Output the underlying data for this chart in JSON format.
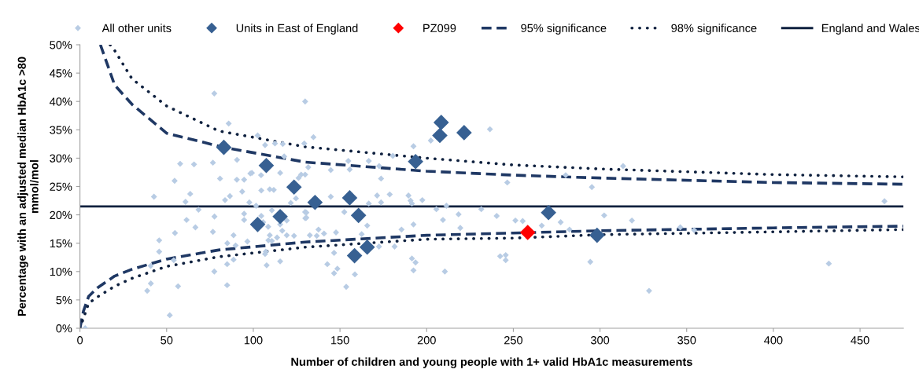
{
  "chart_data": {
    "type": "scatter",
    "xlabel": "Number of children and young people with 1+ valid HbA1c measurements",
    "ylabel": "Percentage with an adjusted median HbA1c >80\nmmol/mol",
    "xlim": [
      0,
      475
    ],
    "xticks": [
      0,
      50,
      100,
      150,
      200,
      250,
      300,
      350,
      400,
      450
    ],
    "ylim": [
      0,
      50
    ],
    "yticks": [
      {
        "value": 0,
        "label": "0%"
      },
      {
        "value": 5,
        "label": "5%"
      },
      {
        "value": 10,
        "label": "10%"
      },
      {
        "value": 15,
        "label": "15%"
      },
      {
        "value": 20,
        "label": "20%"
      },
      {
        "value": 25,
        "label": "25%"
      },
      {
        "value": 30,
        "label": "30%"
      },
      {
        "value": 35,
        "label": "35%"
      },
      {
        "value": 40,
        "label": "40%"
      },
      {
        "value": 45,
        "label": "45%"
      },
      {
        "value": 50,
        "label": "50%"
      }
    ],
    "grid": false,
    "legend": "top",
    "series": [
      {
        "name": "All other units",
        "color": "#b8cce4",
        "marker": "diamond",
        "x": [
          3.0,
          77.5,
          85.8,
          129.9,
          102.5,
          106.8,
          112.5,
          117.0,
          129.4,
          90.6,
          57.8,
          65.8,
          76.7,
          99.2,
          98.3,
          104.5,
          115.5,
          117.8,
          126.1,
          127.6,
          129.9,
          80.8,
          54.6,
          90.5,
          94.7,
          109.5,
          111.8,
          104.6,
          93.6,
          86.5,
          42.7,
          63.6,
          60.9,
          83.7,
          124.6,
          121.6,
          97.7,
          101.6,
          68.4,
          110.7,
          129.9,
          61.5,
          77.6,
          94.7,
          94.7,
          104.6,
          105.7,
          115.5,
          119.3,
          66.6,
          108.6,
          130.0,
          45.7,
          54.8,
          76.7,
          88.6,
          96.6,
          109.5,
          113.7,
          108.7,
          110.7,
          116.7,
          119.3,
          123.5,
          85.0,
          89.8,
          45.7,
          54.1,
          107.2,
          106.8,
          88.6,
          40.8,
          84.9,
          77.5,
          107.7,
          115.5,
          40.9,
          38.8,
          56.6,
          84.9,
          51.8,
          134.7,
          131.7,
          154.8,
          155.6,
          144.7,
          166.6,
          172.6,
          173.7,
          192.4,
          202.4,
          236.5,
          246.5,
          180.5,
          144.7,
          171.4,
          173.7,
          178.7,
          189.5,
          190.7,
          191.5,
          197.5,
          130.6,
          130.6,
          152.5,
          166.6,
          205.6,
          211.4,
          209.4,
          218.4,
          231.5,
          240.4,
          251.2,
          255.4,
          219.4,
          192.4,
          165.7,
          162.5,
          185.5,
          147.7,
          140.8,
          137.6,
          136.6,
          132.6,
          172.5,
          181.5,
          146.6,
          142.7,
          148.5,
          146.6,
          191.5,
          193.6,
          192.4,
          210.5,
          158.6,
          153.6,
          242.4,
          245.6,
          245.6,
          280.2,
          295.3,
          313.3,
          302.4,
          318.4,
          277.3,
          282.4,
          266.4,
          346.3,
          354.3,
          464.1,
          294.4,
          432.0,
          328.3
        ],
        "values": [
          0,
          41.4,
          36.1,
          40.0,
          34.0,
          32.3,
          32.6,
          32.5,
          32.6,
          29.7,
          29.0,
          28.9,
          29.2,
          27.4,
          27.3,
          27.0,
          27.4,
          30.3,
          26.5,
          27.1,
          27.1,
          26.4,
          26.0,
          26.2,
          26.2,
          24.5,
          24.4,
          24.3,
          24.1,
          23.3,
          23.2,
          23.7,
          22.3,
          22.6,
          22.9,
          22.1,
          22.2,
          21.6,
          20.9,
          20.8,
          20.5,
          19.1,
          19.7,
          20.2,
          19.1,
          19.8,
          18.7,
          18.3,
          19.0,
          17.8,
          17.9,
          19.4,
          15.5,
          16.8,
          17.0,
          16.4,
          15.3,
          16.4,
          16.0,
          15.5,
          15.4,
          17.2,
          16.4,
          16.3,
          15.0,
          14.6,
          13.5,
          12.0,
          13.5,
          13.1,
          12.1,
          11.0,
          11.3,
          10.0,
          11.1,
          11.8,
          7.9,
          6.6,
          7.4,
          7.6,
          2.3,
          33.7,
          28.4,
          29.5,
          28.0,
          27.9,
          29.5,
          28.6,
          26.4,
          32.1,
          33.1,
          35.1,
          25.7,
          30.4,
          23.2,
          23.4,
          22.2,
          23.6,
          23.4,
          22.5,
          22.0,
          22.6,
          20.4,
          19.5,
          20.5,
          22.0,
          21.0,
          21.6,
          19.1,
          20.1,
          21.0,
          19.8,
          19.0,
          18.9,
          17.7,
          18.3,
          18.1,
          16.6,
          17.4,
          16.9,
          16.7,
          17.4,
          16.3,
          16.4,
          14.4,
          14.4,
          13.3,
          11.3,
          10.5,
          9.7,
          12.3,
          11.6,
          10.2,
          10.0,
          9.5,
          7.3,
          12.7,
          12.9,
          12.0,
          27.0,
          24.9,
          28.6,
          19.9,
          19.0,
          18.7,
          17.4,
          18.1,
          17.8,
          17.3,
          22.4,
          11.7,
          11.4,
          6.6
        ]
      },
      {
        "name": "Units in East of England",
        "color": "#376092",
        "marker": "diamond",
        "x": [
          83.0,
          107.5,
          123.5,
          115.5,
          102.5,
          208.4,
          207.6,
          221.6,
          193.6,
          135.6,
          155.6,
          160.7,
          158.4,
          165.7,
          270.3,
          298.3
        ],
        "values": [
          31.9,
          28.7,
          24.9,
          19.7,
          18.3,
          36.3,
          34.0,
          34.5,
          29.4,
          22.2,
          23.0,
          19.9,
          12.8,
          14.3,
          20.4,
          16.4
        ]
      },
      {
        "name": "PZ099",
        "color": "#ff0000",
        "marker": "diamond",
        "x": [
          258.3
        ],
        "values": [
          16.9
        ]
      },
      {
        "type": "line",
        "name": "95% significance",
        "color": "#1f3864",
        "marker": "none",
        "line_style": "dashed",
        "x": [
          11.8,
          20,
          30,
          50,
          83,
          130,
          200,
          250,
          300,
          400,
          475
        ],
        "values": [
          50,
          42.9,
          39.5,
          34.4,
          31.9,
          29.3,
          27.7,
          27.0,
          26.5,
          25.7,
          25.4
        ]
      },
      {
        "type": "line",
        "color": "#1f3864",
        "marker": "none",
        "line_style": "dashed",
        "x": [
          0,
          2,
          5,
          10,
          20,
          30,
          50,
          80,
          130,
          200,
          250,
          300,
          400,
          475
        ],
        "values": [
          0,
          3.0,
          5.6,
          7.1,
          9.2,
          10.4,
          12.2,
          13.8,
          15.2,
          16.4,
          16.8,
          17.2,
          17.7,
          18.0
        ]
      },
      {
        "type": "line",
        "name": "98% significance",
        "color": "#0f213f",
        "marker": "none",
        "line_style": "dotted",
        "x": [
          17.4,
          20,
          30,
          50,
          80,
          130,
          200,
          250,
          300,
          400,
          475
        ],
        "values": [
          50,
          49.0,
          44.0,
          39.2,
          34.8,
          32.0,
          30.0,
          28.8,
          28.1,
          27.1,
          26.7
        ]
      },
      {
        "type": "line",
        "color": "#0f213f",
        "marker": "none",
        "line_style": "dotted",
        "x": [
          0,
          5,
          10,
          20,
          30,
          50,
          80,
          130,
          200,
          250,
          300,
          400,
          475
        ],
        "values": [
          0,
          4.4,
          5.5,
          7.4,
          8.8,
          10.9,
          12.6,
          14.3,
          15.7,
          15.9,
          16.5,
          17.0,
          17.4
        ]
      },
      {
        "type": "line",
        "name": "England and Wales",
        "color": "#0f213f",
        "marker": "none",
        "line_style": "solid",
        "x": [
          0,
          475
        ],
        "values": [
          21.5,
          21.5
        ]
      }
    ]
  }
}
